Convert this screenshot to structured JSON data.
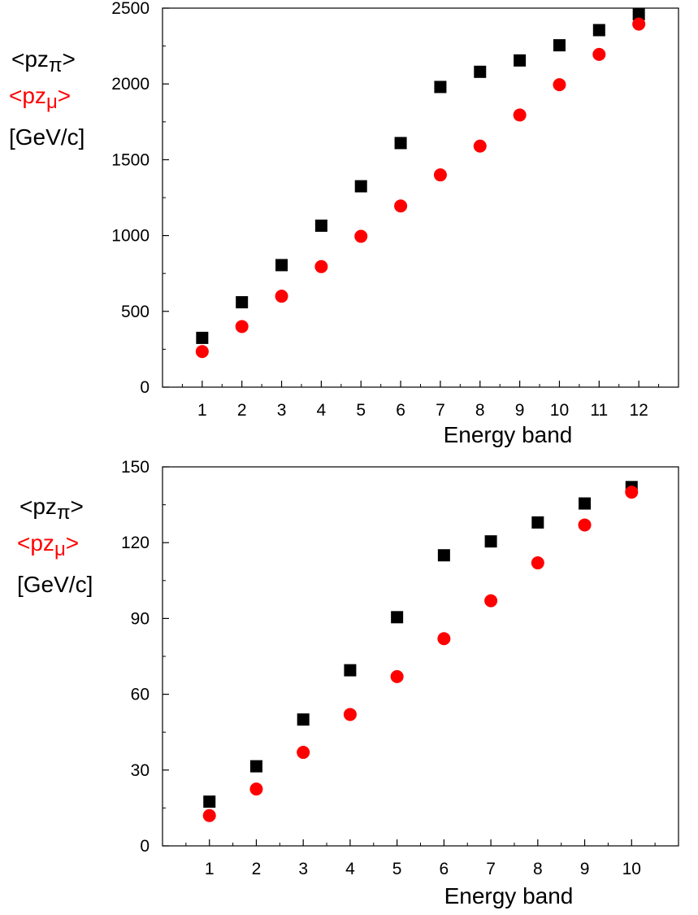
{
  "chart_data": [
    {
      "type": "scatter",
      "xlabel": "Energy band",
      "ylabel": {
        "pi_main": "<pz",
        "pi_sub": "π",
        "pi_close": ">",
        "mu_main": "<pz",
        "mu_sub": "μ",
        "mu_close": ">",
        "unit": "[GeV/c]"
      },
      "xlim": [
        0,
        13
      ],
      "ylim": [
        0,
        2500
      ],
      "x_ticks": [
        1,
        2,
        3,
        4,
        5,
        6,
        7,
        8,
        9,
        10,
        11,
        12
      ],
      "y_ticks": [
        0,
        500,
        1000,
        1500,
        2000,
        2500
      ],
      "grid": false,
      "series": [
        {
          "name": "<pzπ>",
          "color": "#000000",
          "marker": "square",
          "x": [
            1,
            2,
            3,
            4,
            5,
            6,
            7,
            8,
            9,
            10,
            11,
            12
          ],
          "y": [
            325,
            560,
            805,
            1065,
            1325,
            1610,
            1980,
            2080,
            2155,
            2255,
            2355,
            2460
          ]
        },
        {
          "name": "<pzμ>",
          "color": "#ff0000",
          "marker": "circle",
          "x": [
            1,
            2,
            3,
            4,
            5,
            6,
            7,
            8,
            9,
            10,
            11,
            12
          ],
          "y": [
            235,
            400,
            600,
            795,
            995,
            1195,
            1400,
            1590,
            1795,
            1995,
            2195,
            2395
          ]
        }
      ]
    },
    {
      "type": "scatter",
      "xlabel": "Energy band",
      "ylabel": {
        "pi_main": "<pz",
        "pi_sub": "π",
        "pi_close": ">",
        "mu_main": "<pz",
        "mu_sub": "μ",
        "mu_close": ">",
        "unit": "[GeV/c]"
      },
      "xlim": [
        0,
        11
      ],
      "ylim": [
        0,
        150
      ],
      "x_ticks": [
        1,
        2,
        3,
        4,
        5,
        6,
        7,
        8,
        9,
        10
      ],
      "y_ticks": [
        0,
        30,
        60,
        90,
        120,
        150
      ],
      "grid": false,
      "series": [
        {
          "name": "<pzπ>",
          "color": "#000000",
          "marker": "square",
          "x": [
            1,
            2,
            3,
            4,
            5,
            6,
            7,
            8,
            9,
            10
          ],
          "y": [
            17.5,
            31.5,
            50,
            69.5,
            90.5,
            115,
            120.5,
            128,
            135.5,
            142
          ]
        },
        {
          "name": "<pzμ>",
          "color": "#ff0000",
          "marker": "circle",
          "x": [
            1,
            2,
            3,
            4,
            5,
            6,
            7,
            8,
            9,
            10
          ],
          "y": [
            12,
            22.5,
            37,
            52,
            67,
            82,
            97,
            112,
            127,
            140
          ]
        }
      ]
    }
  ]
}
